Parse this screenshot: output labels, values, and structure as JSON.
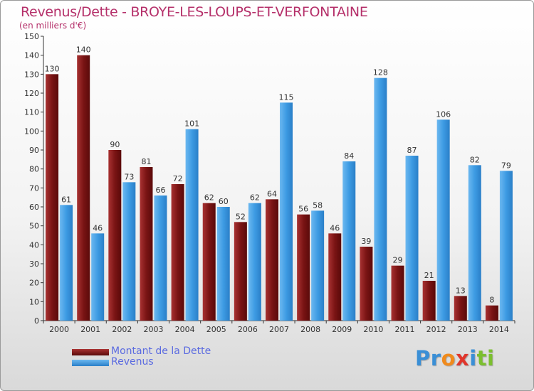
{
  "chart_data": {
    "type": "bar",
    "title": "Revenus/Dette - BROYE-LES-LOUPS-ET-VERFONTAINE",
    "subtitle": "(en milliers d'€)",
    "categories": [
      "2000",
      "2001",
      "2002",
      "2003",
      "2004",
      "2005",
      "2006",
      "2007",
      "2008",
      "2009",
      "2010",
      "2011",
      "2012",
      "2013",
      "2014"
    ],
    "series": [
      {
        "name": "Montant de la Dette",
        "color": "#8b1a1a",
        "values": [
          130,
          140,
          90,
          81,
          72,
          62,
          52,
          64,
          56,
          46,
          39,
          29,
          21,
          13,
          8
        ]
      },
      {
        "name": "Revenus",
        "color": "#3d9be3",
        "values": [
          61,
          46,
          73,
          66,
          101,
          60,
          62,
          115,
          58,
          84,
          128,
          87,
          106,
          82,
          79
        ]
      }
    ],
    "ylim": [
      0,
      150
    ],
    "yticks": [
      0,
      10,
      20,
      30,
      40,
      50,
      60,
      70,
      80,
      90,
      100,
      110,
      120,
      130,
      140,
      150
    ],
    "grid": false,
    "legend": "bottom-left"
  },
  "logo": {
    "parts": [
      "Pr",
      "o",
      "x",
      "i",
      "ti"
    ],
    "colors": [
      "#3a8fd6",
      "#f08a1c",
      "#e0362c",
      "#3a8fd6",
      "#7bbf2f"
    ]
  }
}
